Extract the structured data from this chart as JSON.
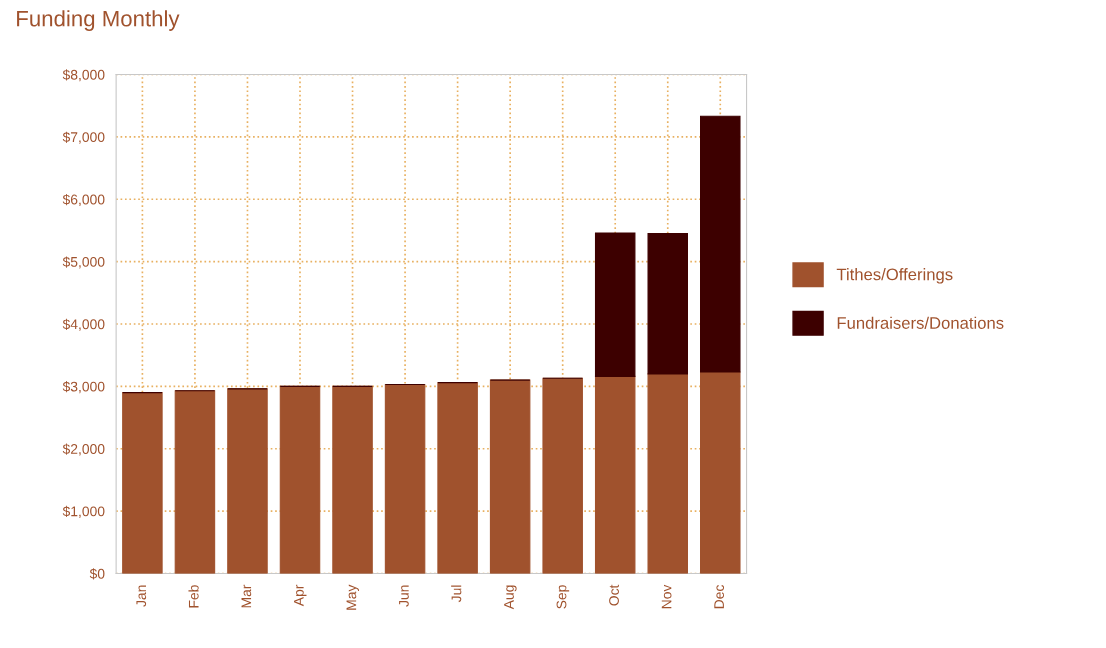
{
  "chart_data": {
    "type": "bar",
    "title": "Funding Monthly",
    "stacked": true,
    "categories": [
      "Jan",
      "Feb",
      "Mar",
      "Apr",
      "May",
      "Jun",
      "Jul",
      "Aug",
      "Sep",
      "Oct",
      "Nov",
      "Dec"
    ],
    "series": [
      {
        "name": "Tithes/Offerings",
        "color": "#a0522d",
        "values": [
          2900,
          2930,
          2960,
          3000,
          3000,
          3030,
          3060,
          3100,
          3130,
          3160,
          3200,
          3230
        ]
      },
      {
        "name": "Fundraisers/Donations",
        "color": "#3d0000",
        "values": [
          0,
          0,
          0,
          0,
          0,
          0,
          0,
          0,
          0,
          2300,
          2250,
          4100
        ]
      }
    ],
    "ylim": [
      0,
      8000
    ],
    "yticks": [
      {
        "value": 0,
        "label": "$0"
      },
      {
        "value": 1000,
        "label": "$1,000"
      },
      {
        "value": 2000,
        "label": "$2,000"
      },
      {
        "value": 3000,
        "label": "$3,000"
      },
      {
        "value": 4000,
        "label": "$4,000"
      },
      {
        "value": 5000,
        "label": "$5,000"
      },
      {
        "value": 6000,
        "label": "$6,000"
      },
      {
        "value": 7000,
        "label": "$7,000"
      },
      {
        "value": 8000,
        "label": "$8,000"
      }
    ],
    "grid": true,
    "legend": "right"
  }
}
